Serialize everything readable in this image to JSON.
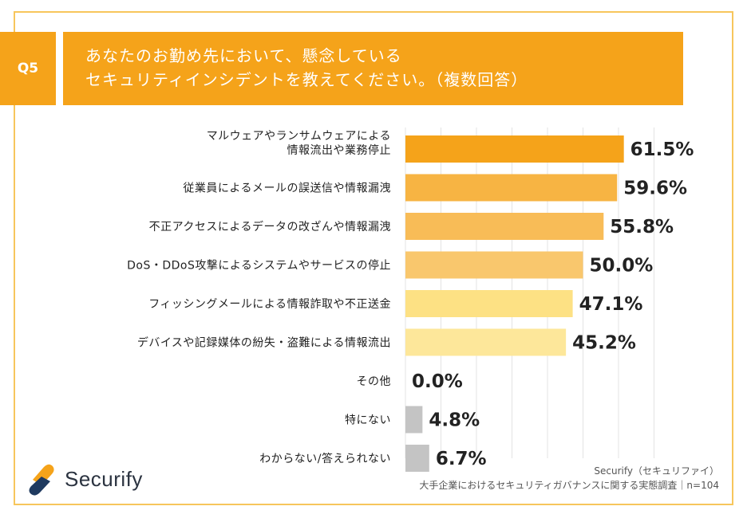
{
  "question": {
    "tag": "Q5",
    "line1": "あなたのお勤め先において、懸念している",
    "line2": "セキュリティインシデントを教えてください。（複数回答）"
  },
  "chart_data": {
    "type": "bar",
    "orientation": "horizontal",
    "title": "あなたのお勤め先において、懸念しているセキュリティインシデントを教えてください。（複数回答）",
    "unit": "%",
    "xlim": [
      0,
      70
    ],
    "categories": [
      [
        "マルウェアやランサムウェアによる",
        "情報流出や業務停止"
      ],
      [
        "従業員によるメールの誤送信や情報漏洩"
      ],
      [
        "不正アクセスによるデータの改ざんや情報漏洩"
      ],
      [
        "DoS・DDoS攻撃によるシステムやサービスの停止"
      ],
      [
        "フィッシングメールによる情報詐取や不正送金"
      ],
      [
        "デバイスや記録媒体の紛失・盗難による情報流出"
      ],
      [
        "その他"
      ],
      [
        "特にない"
      ],
      [
        "わからない/答えられない"
      ]
    ],
    "values": [
      61.5,
      59.6,
      55.8,
      50.0,
      47.1,
      45.2,
      0.0,
      4.8,
      6.7
    ],
    "labels": [
      "61.5%",
      "59.6%",
      "55.8%",
      "50.0%",
      "47.1%",
      "45.2%",
      "0.0%",
      "4.8%",
      "6.7%"
    ],
    "colors": [
      "#f5a31a",
      "#f7b443",
      "#f8bc57",
      "#f9c76d",
      "#fde184",
      "#fde79a",
      "#fde79a",
      "#c4c4c4",
      "#c4c4c4"
    ]
  },
  "brand": {
    "name": "Securify",
    "logo_colors": [
      "#f5a31a",
      "#1f3a5f"
    ]
  },
  "source": {
    "line1": "Securify（セキュリファイ）",
    "line2": "大手企業におけるセキュリティガバナンスに関する実態調査｜n=104"
  }
}
